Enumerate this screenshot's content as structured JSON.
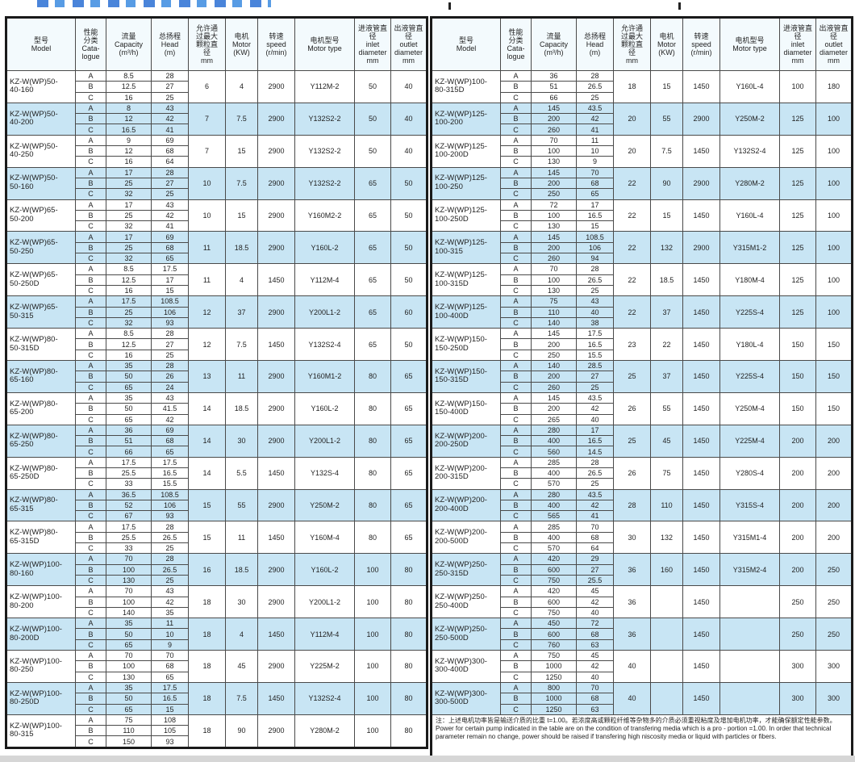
{
  "colors": {
    "row_alt": "#c8e5f4",
    "row_base": "#ffffff",
    "header_bg": "#f3fafd",
    "border": "#4a4a4a"
  },
  "columns": [
    "型号\nModel",
    "性能\n分类\nCata-\nlogue",
    "流量\nCapacity\n(m³/h)",
    "总扬程\nHead\n(m)",
    "允许通\n过最大\n颗粒直\n径\nmm",
    "电机\nMotor\n(KW)",
    "转速\nspeed\n(r/min)",
    "电机型号\nMotor type",
    "进液管直\n径\ninlet\ndiameter\nmm",
    "出液管直\n径\noutlet\ndiameter\nmm"
  ],
  "left_table": {
    "groups": [
      {
        "model": "KZ-W(WP)50-\n40-160",
        "perf": [
          [
            "A",
            "8.5",
            "28"
          ],
          [
            "B",
            "12.5",
            "27"
          ],
          [
            "C",
            "16",
            "25"
          ]
        ],
        "grain": "6",
        "kw": "4",
        "speed": "2900",
        "motor": "Y112M-2",
        "inlet": "50",
        "outlet": "40"
      },
      {
        "model": "KZ-W(WP)50-\n40-200",
        "perf": [
          [
            "A",
            "8",
            "43"
          ],
          [
            "B",
            "12",
            "42"
          ],
          [
            "C",
            "16.5",
            "41"
          ]
        ],
        "grain": "7",
        "kw": "7.5",
        "speed": "2900",
        "motor": "Y132S2-2",
        "inlet": "50",
        "outlet": "40"
      },
      {
        "model": "KZ-W(WP)50-\n40-250",
        "perf": [
          [
            "A",
            "9",
            "69"
          ],
          [
            "B",
            "12",
            "68"
          ],
          [
            "C",
            "16",
            "64"
          ]
        ],
        "grain": "7",
        "kw": "15",
        "speed": "2900",
        "motor": "Y132S2-2",
        "inlet": "50",
        "outlet": "40"
      },
      {
        "model": "KZ-W(WP)50-\n50-160",
        "perf": [
          [
            "A",
            "17",
            "28"
          ],
          [
            "B",
            "25",
            "27"
          ],
          [
            "C",
            "32",
            "25"
          ]
        ],
        "grain": "10",
        "kw": "7.5",
        "speed": "2900",
        "motor": "Y132S2-2",
        "inlet": "65",
        "outlet": "50"
      },
      {
        "model": "KZ-W(WP)65-\n50-200",
        "perf": [
          [
            "A",
            "17",
            "43"
          ],
          [
            "B",
            "25",
            "42"
          ],
          [
            "C",
            "32",
            "41"
          ]
        ],
        "grain": "10",
        "kw": "15",
        "speed": "2900",
        "motor": "Y160M2-2",
        "inlet": "65",
        "outlet": "50"
      },
      {
        "model": "KZ-W(WP)65-\n50-250",
        "perf": [
          [
            "A",
            "17",
            "69"
          ],
          [
            "B",
            "25",
            "68"
          ],
          [
            "C",
            "32",
            "65"
          ]
        ],
        "grain": "11",
        "kw": "18.5",
        "speed": "2900",
        "motor": "Y160L-2",
        "inlet": "65",
        "outlet": "50"
      },
      {
        "model": "KZ-W(WP)65-\n50-250D",
        "perf": [
          [
            "A",
            "8.5",
            "17.5"
          ],
          [
            "B",
            "12.5",
            "17"
          ],
          [
            "C",
            "16",
            "15"
          ]
        ],
        "grain": "11",
        "kw": "4",
        "speed": "1450",
        "motor": "Y112M-4",
        "inlet": "65",
        "outlet": "50"
      },
      {
        "model": "KZ-W(WP)65-\n50-315",
        "perf": [
          [
            "A",
            "17.5",
            "108.5"
          ],
          [
            "B",
            "25",
            "106"
          ],
          [
            "C",
            "32",
            "93"
          ]
        ],
        "grain": "12",
        "kw": "37",
        "speed": "2900",
        "motor": "Y200L1-2",
        "inlet": "65",
        "outlet": "60"
      },
      {
        "model": "KZ-W(WP)80-\n50-315D",
        "perf": [
          [
            "A",
            "8.5",
            "28"
          ],
          [
            "B",
            "12.5",
            "27"
          ],
          [
            "C",
            "16",
            "25"
          ]
        ],
        "grain": "12",
        "kw": "7.5",
        "speed": "1450",
        "motor": "Y132S2-4",
        "inlet": "65",
        "outlet": "50"
      },
      {
        "model": "KZ-W(WP)80-\n65-160",
        "perf": [
          [
            "A",
            "35",
            "28"
          ],
          [
            "B",
            "50",
            "26"
          ],
          [
            "C",
            "65",
            "24"
          ]
        ],
        "grain": "13",
        "kw": "11",
        "speed": "2900",
        "motor": "Y160M1-2",
        "inlet": "80",
        "outlet": "65"
      },
      {
        "model": "KZ-W(WP)80-\n65-200",
        "perf": [
          [
            "A",
            "35",
            "43"
          ],
          [
            "B",
            "50",
            "41.5"
          ],
          [
            "C",
            "65",
            "42"
          ]
        ],
        "grain": "14",
        "kw": "18.5",
        "speed": "2900",
        "motor": "Y160L-2",
        "inlet": "80",
        "outlet": "65"
      },
      {
        "model": "KZ-W(WP)80-\n65-250",
        "perf": [
          [
            "A",
            "36",
            "69"
          ],
          [
            "B",
            "51",
            "68"
          ],
          [
            "C",
            "66",
            "65"
          ]
        ],
        "grain": "14",
        "kw": "30",
        "speed": "2900",
        "motor": "Y200L1-2",
        "inlet": "80",
        "outlet": "65"
      },
      {
        "model": "KZ-W(WP)80-\n65-250D",
        "perf": [
          [
            "A",
            "17.5",
            "17.5"
          ],
          [
            "B",
            "25.5",
            "16.5"
          ],
          [
            "C",
            "33",
            "15.5"
          ]
        ],
        "grain": "14",
        "kw": "5.5",
        "speed": "1450",
        "motor": "Y132S-4",
        "inlet": "80",
        "outlet": "65"
      },
      {
        "model": "KZ-W(WP)80-\n65-315",
        "perf": [
          [
            "A",
            "36.5",
            "108.5"
          ],
          [
            "B",
            "52",
            "106"
          ],
          [
            "C",
            "67",
            "93"
          ]
        ],
        "grain": "15",
        "kw": "55",
        "speed": "2900",
        "motor": "Y250M-2",
        "inlet": "80",
        "outlet": "65"
      },
      {
        "model": "KZ-W(WP)80-\n65-315D",
        "perf": [
          [
            "A",
            "17.5",
            "28"
          ],
          [
            "B",
            "25.5",
            "26.5"
          ],
          [
            "C",
            "33",
            "25"
          ]
        ],
        "grain": "15",
        "kw": "11",
        "speed": "1450",
        "motor": "Y160M-4",
        "inlet": "80",
        "outlet": "65"
      },
      {
        "model": "KZ-W(WP)100-\n80-160",
        "perf": [
          [
            "A",
            "70",
            "28"
          ],
          [
            "B",
            "100",
            "26.5"
          ],
          [
            "C",
            "130",
            "25"
          ]
        ],
        "grain": "16",
        "kw": "18.5",
        "speed": "2900",
        "motor": "Y160L-2",
        "inlet": "100",
        "outlet": "80"
      },
      {
        "model": "KZ-W(WP)100-\n80-200",
        "perf": [
          [
            "A",
            "70",
            "43"
          ],
          [
            "B",
            "100",
            "42"
          ],
          [
            "C",
            "140",
            "35"
          ]
        ],
        "grain": "18",
        "kw": "30",
        "speed": "2900",
        "motor": "Y200L1-2",
        "inlet": "100",
        "outlet": "80"
      },
      {
        "model": "KZ-W(WP)100-\n80-200D",
        "perf": [
          [
            "A",
            "35",
            "11"
          ],
          [
            "B",
            "50",
            "10"
          ],
          [
            "C",
            "65",
            "9"
          ]
        ],
        "grain": "18",
        "kw": "4",
        "speed": "1450",
        "motor": "Y112M-4",
        "inlet": "100",
        "outlet": "80"
      },
      {
        "model": "KZ-W(WP)100-\n80-250",
        "perf": [
          [
            "A",
            "70",
            "70"
          ],
          [
            "B",
            "100",
            "68"
          ],
          [
            "C",
            "130",
            "65"
          ]
        ],
        "grain": "18",
        "kw": "45",
        "speed": "2900",
        "motor": "Y225M-2",
        "inlet": "100",
        "outlet": "80"
      },
      {
        "model": "KZ-W(WP)100-\n80-250D",
        "perf": [
          [
            "A",
            "35",
            "17.5"
          ],
          [
            "B",
            "50",
            "16.5"
          ],
          [
            "C",
            "65",
            "15"
          ]
        ],
        "grain": "18",
        "kw": "7.5",
        "speed": "1450",
        "motor": "Y132S2-4",
        "inlet": "100",
        "outlet": "80"
      },
      {
        "model": "KZ-W(WP)100-\n80-315",
        "perf": [
          [
            "A",
            "75",
            "108"
          ],
          [
            "B",
            "110",
            "105"
          ],
          [
            "C",
            "150",
            "93"
          ]
        ],
        "grain": "18",
        "kw": "90",
        "speed": "2900",
        "motor": "Y280M-2",
        "inlet": "100",
        "outlet": "80"
      }
    ]
  },
  "right_table": {
    "groups": [
      {
        "model": "KZ-W(WP)100-\n80-315D",
        "perf": [
          [
            "A",
            "36",
            "28"
          ],
          [
            "B",
            "51",
            "26.5"
          ],
          [
            "C",
            "66",
            "25"
          ]
        ],
        "grain": "18",
        "kw": "15",
        "speed": "1450",
        "motor": "Y160L-4",
        "inlet": "100",
        "outlet": "180"
      },
      {
        "model": "KZ-W(WP)125-\n100-200",
        "perf": [
          [
            "A",
            "145",
            "43.5"
          ],
          [
            "B",
            "200",
            "42"
          ],
          [
            "C",
            "260",
            "41"
          ]
        ],
        "grain": "20",
        "kw": "55",
        "speed": "2900",
        "motor": "Y250M-2",
        "inlet": "125",
        "outlet": "100"
      },
      {
        "model": "KZ-W(WP)125-\n100-200D",
        "perf": [
          [
            "A",
            "70",
            "11"
          ],
          [
            "B",
            "100",
            "10"
          ],
          [
            "C",
            "130",
            "9"
          ]
        ],
        "grain": "20",
        "kw": "7.5",
        "speed": "1450",
        "motor": "Y132S2-4",
        "inlet": "125",
        "outlet": "100"
      },
      {
        "model": "KZ-W(WP)125-\n100-250",
        "perf": [
          [
            "A",
            "145",
            "70"
          ],
          [
            "B",
            "200",
            "68"
          ],
          [
            "C",
            "250",
            "65"
          ]
        ],
        "grain": "22",
        "kw": "90",
        "speed": "2900",
        "motor": "Y280M-2",
        "inlet": "125",
        "outlet": "100"
      },
      {
        "model": "KZ-W(WP)125-\n100-250D",
        "perf": [
          [
            "A",
            "72",
            "17"
          ],
          [
            "B",
            "100",
            "16.5"
          ],
          [
            "C",
            "130",
            "15"
          ]
        ],
        "grain": "22",
        "kw": "15",
        "speed": "1450",
        "motor": "Y160L-4",
        "inlet": "125",
        "outlet": "100"
      },
      {
        "model": "KZ-W(WP)125-\n100-315",
        "perf": [
          [
            "A",
            "145",
            "108.5"
          ],
          [
            "B",
            "200",
            "106"
          ],
          [
            "C",
            "260",
            "94"
          ]
        ],
        "grain": "22",
        "kw": "132",
        "speed": "2900",
        "motor": "Y315M1-2",
        "inlet": "125",
        "outlet": "100"
      },
      {
        "model": "KZ-W(WP)125-\n100-315D",
        "perf": [
          [
            "A",
            "70",
            "28"
          ],
          [
            "B",
            "100",
            "26.5"
          ],
          [
            "C",
            "130",
            "25"
          ]
        ],
        "grain": "22",
        "kw": "18.5",
        "speed": "1450",
        "motor": "Y180M-4",
        "inlet": "125",
        "outlet": "100"
      },
      {
        "model": "KZ-W(WP)125-\n100-400D",
        "perf": [
          [
            "A",
            "75",
            "43"
          ],
          [
            "B",
            "110",
            "40"
          ],
          [
            "C",
            "140",
            "38"
          ]
        ],
        "grain": "22",
        "kw": "37",
        "speed": "1450",
        "motor": "Y225S-4",
        "inlet": "125",
        "outlet": "100"
      },
      {
        "model": "KZ-W(WP)150-\n150-250D",
        "perf": [
          [
            "A",
            "145",
            "17.5"
          ],
          [
            "B",
            "200",
            "16.5"
          ],
          [
            "C",
            "250",
            "15.5"
          ]
        ],
        "grain": "23",
        "kw": "22",
        "speed": "1450",
        "motor": "Y180L-4",
        "inlet": "150",
        "outlet": "150"
      },
      {
        "model": "KZ-W(WP)150-\n150-315D",
        "perf": [
          [
            "A",
            "140",
            "28.5"
          ],
          [
            "B",
            "200",
            "27"
          ],
          [
            "C",
            "260",
            "25"
          ]
        ],
        "grain": "25",
        "kw": "37",
        "speed": "1450",
        "motor": "Y225S-4",
        "inlet": "150",
        "outlet": "150"
      },
      {
        "model": "KZ-W(WP)150-\n150-400D",
        "perf": [
          [
            "A",
            "145",
            "43.5"
          ],
          [
            "B",
            "200",
            "42"
          ],
          [
            "C",
            "265",
            "40"
          ]
        ],
        "grain": "26",
        "kw": "55",
        "speed": "1450",
        "motor": "Y250M-4",
        "inlet": "150",
        "outlet": "150"
      },
      {
        "model": "KZ-W(WP)200-\n200-250D",
        "perf": [
          [
            "A",
            "280",
            "17"
          ],
          [
            "B",
            "400",
            "16.5"
          ],
          [
            "C",
            "560",
            "14.5"
          ]
        ],
        "grain": "25",
        "kw": "45",
        "speed": "1450",
        "motor": "Y225M-4",
        "inlet": "200",
        "outlet": "200"
      },
      {
        "model": "KZ-W(WP)200-\n200-315D",
        "perf": [
          [
            "A",
            "285",
            "28"
          ],
          [
            "B",
            "400",
            "26.5"
          ],
          [
            "C",
            "570",
            "25"
          ]
        ],
        "grain": "26",
        "kw": "75",
        "speed": "1450",
        "motor": "Y280S-4",
        "inlet": "200",
        "outlet": "200"
      },
      {
        "model": "KZ-W(WP)200-\n200-400D",
        "perf": [
          [
            "A",
            "280",
            "43.5"
          ],
          [
            "B",
            "400",
            "42"
          ],
          [
            "C",
            "565",
            "41"
          ]
        ],
        "grain": "28",
        "kw": "110",
        "speed": "1450",
        "motor": "Y315S-4",
        "inlet": "200",
        "outlet": "200"
      },
      {
        "model": "KZ-W(WP)200-\n200-500D",
        "perf": [
          [
            "A",
            "285",
            "70"
          ],
          [
            "B",
            "400",
            "68"
          ],
          [
            "C",
            "570",
            "64"
          ]
        ],
        "grain": "30",
        "kw": "132",
        "speed": "1450",
        "motor": "Y315M1-4",
        "inlet": "200",
        "outlet": "200"
      },
      {
        "model": "KZ-W(WP)250-\n250-315D",
        "perf": [
          [
            "A",
            "420",
            "29"
          ],
          [
            "B",
            "600",
            "27"
          ],
          [
            "C",
            "750",
            "25.5"
          ]
        ],
        "grain": "36",
        "kw": "160",
        "speed": "1450",
        "motor": "Y315M2-4",
        "inlet": "200",
        "outlet": "250"
      },
      {
        "model": "KZ-W(WP)250-\n250-400D",
        "perf": [
          [
            "A",
            "420",
            "45"
          ],
          [
            "B",
            "600",
            "42"
          ],
          [
            "C",
            "750",
            "40"
          ]
        ],
        "grain": "36",
        "kw": "",
        "speed": "1450",
        "motor": "",
        "inlet": "250",
        "outlet": "250"
      },
      {
        "model": "KZ-W(WP)250-\n250-500D",
        "perf": [
          [
            "A",
            "450",
            "72"
          ],
          [
            "B",
            "600",
            "68"
          ],
          [
            "C",
            "760",
            "63"
          ]
        ],
        "grain": "36",
        "kw": "",
        "speed": "1450",
        "motor": "",
        "inlet": "250",
        "outlet": "250"
      },
      {
        "model": "KZ-W(WP)300-\n300-400D",
        "perf": [
          [
            "A",
            "750",
            "45"
          ],
          [
            "B",
            "1000",
            "42"
          ],
          [
            "C",
            "1250",
            "40"
          ]
        ],
        "grain": "40",
        "kw": "",
        "speed": "1450",
        "motor": "",
        "inlet": "300",
        "outlet": "300"
      },
      {
        "model": "KZ-W(WP)300-\n300-500D",
        "perf": [
          [
            "A",
            "800",
            "70"
          ],
          [
            "B",
            "1000",
            "68"
          ],
          [
            "C",
            "1250",
            "63"
          ]
        ],
        "grain": "40",
        "kw": "",
        "speed": "1450",
        "motor": "",
        "inlet": "300",
        "outlet": "300"
      }
    ],
    "note": {
      "zh": "注：上述电机功率皆是输送介质的比重 t=1.00。若浓度高或颗粒纤维等杂物多的介质必须重视粘度及增加电机功率，才能确保额定性能参数。",
      "en": "Power for certain pump indicated in the table are on the condition of transfering media which is a pro - portion =1.00. In order that technical parameter remain no change, power should be raised if transfering high niscosity media or liquid with particles or fibers."
    }
  }
}
